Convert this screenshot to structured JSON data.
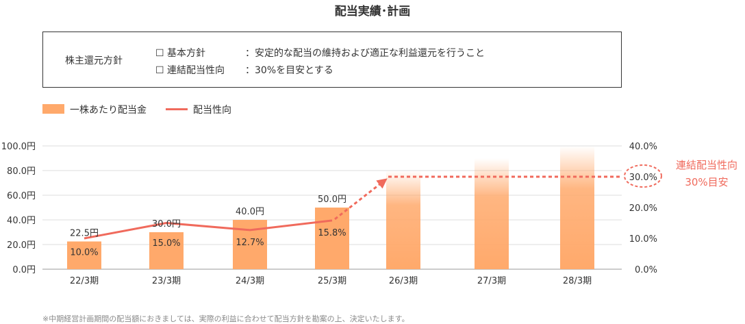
{
  "title": "配当実績･計画",
  "policy": {
    "label": "株主還元方針",
    "items": [
      {
        "checkbox": "☐",
        "name": "基本方針",
        "sep": "：",
        "text": "安定的な配当の維持および適正な利益還元を行うこと"
      },
      {
        "checkbox": "☐",
        "name": "連結配当性向",
        "sep": "：",
        "text": "30%を目安とする"
      }
    ]
  },
  "legend": {
    "bar_label": "一株あたり配当金",
    "line_label": "配当性向"
  },
  "annotation": {
    "line1": "連結配当性向",
    "line2": "30%目安"
  },
  "footnote": "※中期経営計画期間の配当額におきましては、実際の利益に合わせて配当方針を勘案の上、決定いたします。",
  "colors": {
    "bar": "#ffa96b",
    "line": "#f06a5c",
    "annotation": "#f06a5c"
  },
  "chart_data": {
    "type": "bar",
    "categories": [
      "22/3期",
      "23/3期",
      "24/3期",
      "25/3期",
      "26/3期",
      "27/3期",
      "28/3期"
    ],
    "series": [
      {
        "name": "一株あたり配当金",
        "type": "bar",
        "axis": "left",
        "values": [
          22.5,
          30.0,
          40.0,
          50.0,
          80.0,
          90.0,
          100.0
        ],
        "labels": [
          "22.5円",
          "30.0円",
          "40.0円",
          "50.0円",
          "",
          "",
          ""
        ],
        "planned": [
          false,
          false,
          false,
          false,
          true,
          true,
          true
        ]
      },
      {
        "name": "配当性向",
        "type": "line",
        "axis": "right",
        "values": [
          10.0,
          15.0,
          12.7,
          15.8,
          null,
          null,
          null
        ],
        "labels": [
          "10.0%",
          "15.0%",
          "12.7%",
          "15.8%",
          "",
          "",
          ""
        ]
      }
    ],
    "target": {
      "axis": "right",
      "value": 30.0,
      "label": "30.0%",
      "from_category": "26/3期"
    },
    "left_axis": {
      "ylim": [
        0,
        100
      ],
      "ticks": [
        "0.0円",
        "20.0円",
        "40.0円",
        "60.0円",
        "80.0円",
        "100.0円"
      ]
    },
    "right_axis": {
      "ylim": [
        0,
        40
      ],
      "ticks": [
        "0.0%",
        "10.0%",
        "20.0%",
        "30.0%",
        "40.0%"
      ]
    },
    "grid": true
  }
}
